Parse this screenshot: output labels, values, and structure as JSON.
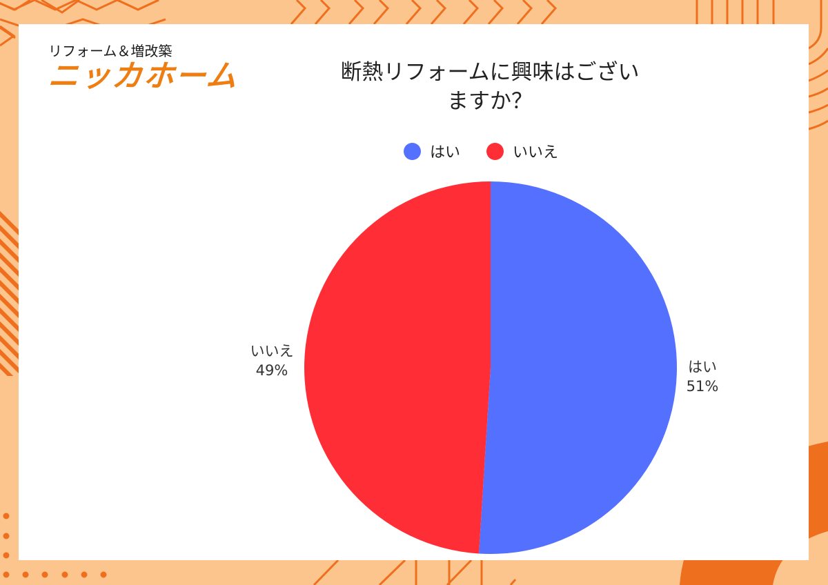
{
  "brand": {
    "subtitle": "リフォーム＆増改築",
    "name": "ニッカホーム",
    "color": "#ee7d12"
  },
  "chart_data": {
    "type": "pie",
    "title": "断熱リフォームに興味はございますか？",
    "title_lines": [
      "断熱リフォームに興味はござい",
      "ますか？"
    ],
    "categories": [
      "はい",
      "いいえ"
    ],
    "values": [
      51,
      49
    ],
    "unit": "%",
    "colors": [
      "#5470ff",
      "#ff2d35"
    ],
    "labels": [
      {
        "name": "はい",
        "value": "51%"
      },
      {
        "name": "いいえ",
        "value": "49%"
      }
    ],
    "legend": {
      "position": "top",
      "entries": [
        "はい",
        "いいえ"
      ]
    },
    "start_angle_deg": 0,
    "direction": "clockwise"
  },
  "colors": {
    "background": "#fdc58e",
    "accent": "#ee6f1e",
    "card": "#ffffff"
  }
}
